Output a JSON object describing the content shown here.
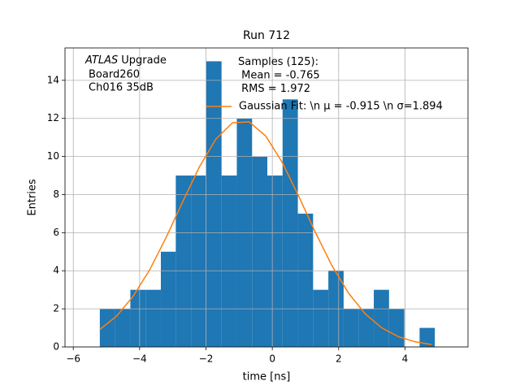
{
  "chart_data": {
    "type": "histogram",
    "title": "Run 712",
    "xlabel": "time [ns]",
    "ylabel": "Entries",
    "annotation": {
      "emphasis": "ATLAS",
      "lines": [
        "Upgrade",
        "Board260",
        "Ch016 35dB"
      ]
    },
    "bins": [
      -5.2,
      -4.74,
      -4.28,
      -3.82,
      -3.36,
      -2.91,
      -2.45,
      -1.99,
      -1.53,
      -1.07,
      -0.61,
      -0.15,
      0.31,
      0.77,
      1.23,
      1.69,
      2.15,
      2.61,
      3.06,
      3.52,
      3.98,
      4.44,
      4.9
    ],
    "series": [
      {
        "name": "Samples (125):\n Mean = -0.765\n RMS = 1.972",
        "color": "#1f77b4",
        "values": [
          2,
          2,
          3,
          3,
          5,
          9,
          9,
          15,
          9,
          12,
          10,
          9,
          13,
          7,
          3,
          4,
          2,
          2,
          3,
          2,
          0,
          1
        ]
      },
      {
        "name": "Gaussian Fit: \\n μ = -0.915 \\n σ=1.894",
        "color": "#ff7f0e",
        "x": [
          -5.2,
          -4.7,
          -4.2,
          -3.7,
          -3.2,
          -2.7,
          -2.2,
          -1.7,
          -1.2,
          -0.7,
          -0.2,
          0.3,
          0.8,
          1.3,
          1.8,
          2.3,
          2.8,
          3.3,
          3.8,
          4.3,
          4.8
        ],
        "values": [
          0.92,
          1.61,
          2.65,
          4.04,
          5.75,
          7.63,
          9.45,
          10.92,
          11.77,
          11.82,
          11.08,
          9.69,
          7.9,
          6.01,
          4.26,
          2.82,
          1.74,
          1.0,
          0.54,
          0.27,
          0.13
        ]
      }
    ],
    "xlim": [
      -6.25,
      5.9
    ],
    "ylim": [
      0,
      15.7
    ],
    "xticks": [
      {
        "value": -6,
        "label": "−6"
      },
      {
        "value": -4,
        "label": "−4"
      },
      {
        "value": -2,
        "label": "−2"
      },
      0,
      2,
      4
    ],
    "yticks": [
      0,
      2,
      4,
      6,
      8,
      10,
      12,
      14
    ],
    "grid": true
  }
}
